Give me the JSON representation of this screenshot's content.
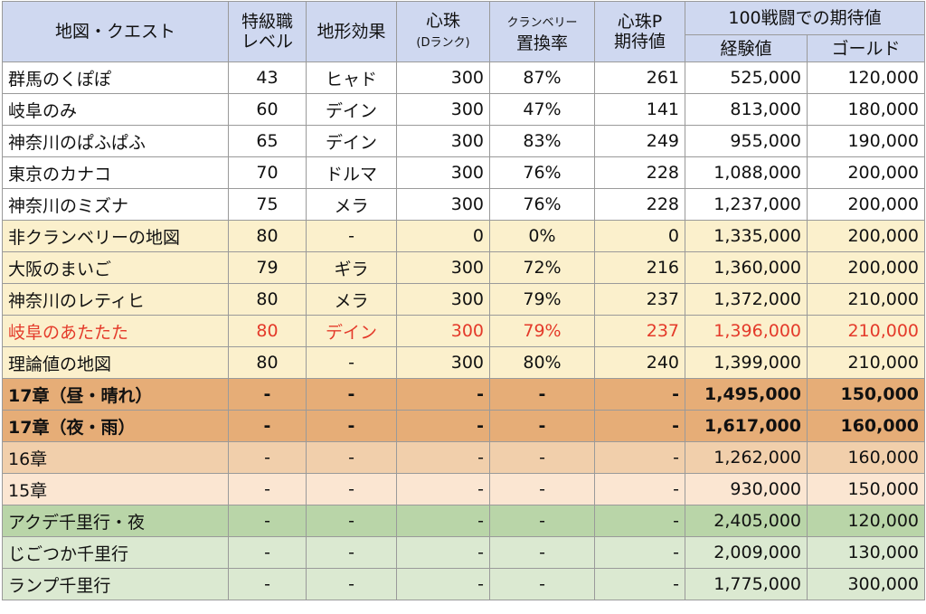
{
  "header": {
    "map": "地図・クエスト",
    "level_line1": "特級職",
    "level_line2": "レベル",
    "terrain": "地形効果",
    "kokoro_line1": "心珠",
    "kokoro_line2": "(Dランク)",
    "cranberry_line1": "クランベリー",
    "cranberry_line2": "置換率",
    "kokoro_p_line1": "心珠P",
    "kokoro_p_line2": "期待値",
    "expected_group": "100戦闘での期待値",
    "exp": "経験値",
    "gold": "ゴールド"
  },
  "rows": [
    {
      "style": "w",
      "name": "群馬のくぽぽ",
      "level": "43",
      "terrain": "ヒャド",
      "kokoro": "300",
      "rate": "87%",
      "kp": "261",
      "exp": "525,000",
      "gold": "120,000"
    },
    {
      "style": "w",
      "name": "岐阜のみ",
      "level": "60",
      "terrain": "デイン",
      "kokoro": "300",
      "rate": "47%",
      "kp": "141",
      "exp": "813,000",
      "gold": "180,000"
    },
    {
      "style": "w",
      "name": "神奈川のぱふぱふ",
      "level": "65",
      "terrain": "デイン",
      "kokoro": "300",
      "rate": "83%",
      "kp": "249",
      "exp": "955,000",
      "gold": "190,000"
    },
    {
      "style": "w",
      "name": "東京のカナコ",
      "level": "70",
      "terrain": "ドルマ",
      "kokoro": "300",
      "rate": "76%",
      "kp": "228",
      "exp": "1,088,000",
      "gold": "200,000"
    },
    {
      "style": "w",
      "name": "神奈川のミズナ",
      "level": "75",
      "terrain": "メラ",
      "kokoro": "300",
      "rate": "76%",
      "kp": "228",
      "exp": "1,237,000",
      "gold": "200,000"
    },
    {
      "style": "y",
      "name": "非クランベリーの地図",
      "level": "80",
      "terrain": "-",
      "kokoro": "0",
      "rate": "0%",
      "kp": "0",
      "exp": "1,335,000",
      "gold": "200,000"
    },
    {
      "style": "y",
      "name": "大阪のまいご",
      "level": "79",
      "terrain": "ギラ",
      "kokoro": "300",
      "rate": "72%",
      "kp": "216",
      "exp": "1,360,000",
      "gold": "200,000"
    },
    {
      "style": "y",
      "name": "神奈川のレティヒ",
      "level": "80",
      "terrain": "メラ",
      "kokoro": "300",
      "rate": "79%",
      "kp": "237",
      "exp": "1,372,000",
      "gold": "210,000"
    },
    {
      "style": "y red",
      "name": "岐阜のあたたた",
      "level": "80",
      "terrain": "デイン",
      "kokoro": "300",
      "rate": "79%",
      "kp": "237",
      "exp": "1,396,000",
      "gold": "210,000"
    },
    {
      "style": "y",
      "name": "理論値の地図",
      "level": "80",
      "terrain": "-",
      "kokoro": "300",
      "rate": "80%",
      "kp": "240",
      "exp": "1,399,000",
      "gold": "210,000"
    },
    {
      "style": "o1",
      "name": "17章（昼・晴れ）",
      "level": "-",
      "terrain": "-",
      "kokoro": "-",
      "rate": "-",
      "kp": "-",
      "exp": "1,495,000",
      "gold": "150,000"
    },
    {
      "style": "o1",
      "name": "17章（夜・雨）",
      "level": "-",
      "terrain": "-",
      "kokoro": "-",
      "rate": "-",
      "kp": "-",
      "exp": "1,617,000",
      "gold": "160,000"
    },
    {
      "style": "o2",
      "name": "16章",
      "level": "-",
      "terrain": "-",
      "kokoro": "-",
      "rate": "-",
      "kp": "-",
      "exp": "1,262,000",
      "gold": "160,000"
    },
    {
      "style": "o3",
      "name": "15章",
      "level": "-",
      "terrain": "-",
      "kokoro": "-",
      "rate": "-",
      "kp": "-",
      "exp": "930,000",
      "gold": "150,000"
    },
    {
      "style": "g1",
      "name": "アクデ千里行・夜",
      "level": "-",
      "terrain": "-",
      "kokoro": "-",
      "rate": "-",
      "kp": "-",
      "exp": "2,405,000",
      "gold": "120,000"
    },
    {
      "style": "g2",
      "name": "じごつか千里行",
      "level": "-",
      "terrain": "-",
      "kokoro": "-",
      "rate": "-",
      "kp": "-",
      "exp": "2,009,000",
      "gold": "130,000"
    },
    {
      "style": "g2",
      "name": "ランプ千里行",
      "level": "-",
      "terrain": "-",
      "kokoro": "-",
      "rate": "-",
      "kp": "-",
      "exp": "1,775,000",
      "gold": "300,000"
    }
  ]
}
